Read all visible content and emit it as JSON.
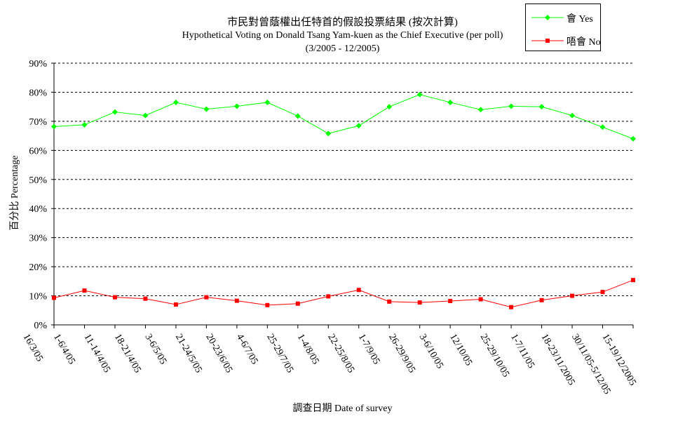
{
  "chart_data": {
    "type": "line",
    "title": "市民對曾蔭權出任特首的假設投票結果 (按次計算)",
    "subtitle": "Hypothetical Voting on Donald Tsang Yam-kuen as the Chief Executive (per poll)",
    "period": "(3/2005 - 12/2005)",
    "xlabel": "調查日期 Date of survey",
    "ylabel": "百分比 Percentage",
    "ylim": [
      0,
      90
    ],
    "yticks": [
      "0%",
      "10%",
      "20%",
      "30%",
      "40%",
      "50%",
      "60%",
      "70%",
      "80%",
      "90%"
    ],
    "grid": "horizontal-dashed",
    "legend_position": "top-right",
    "categories": [
      "16/3/05",
      "1-6/4/05",
      "11-14/4/05",
      "18-21/4/05",
      "3-6/5/05",
      "21-24/5/05",
      "20-23/6/05",
      "4-6/7/05",
      "25-29/7/05",
      "1-4/8/05",
      "22-25/8/05",
      "1-7/9/05",
      "26-29/9/05",
      "3-6/10/05",
      "12/10/05",
      "25-29/10/05",
      "1-7/11/05",
      "18-23/11/2005",
      "30/11/05-5/12/05",
      "15-19/12/2005"
    ],
    "series": [
      {
        "name": "會 Yes",
        "color": "#00ff00",
        "marker": "diamond",
        "values": [
          68.2,
          68.8,
          73.2,
          72.0,
          76.5,
          74.2,
          75.2,
          76.5,
          71.8,
          65.8,
          68.5,
          75.0,
          79.2,
          76.5,
          74.0,
          75.2,
          75.0,
          72.0,
          68.0,
          64.0
        ]
      },
      {
        "name": "唔會 No",
        "color": "#ff0000",
        "marker": "square",
        "values": [
          9.3,
          11.8,
          9.5,
          9.0,
          7.0,
          9.5,
          8.3,
          6.8,
          7.3,
          9.8,
          12.0,
          8.0,
          7.7,
          8.2,
          8.8,
          6.1,
          8.5,
          10.0,
          11.3,
          15.4
        ]
      }
    ]
  }
}
